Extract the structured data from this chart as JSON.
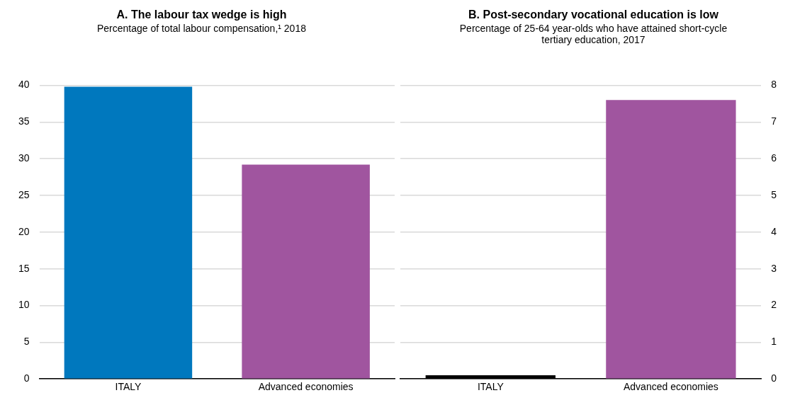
{
  "chart_data": [
    {
      "type": "bar",
      "title": "A. The labour tax wedge is high",
      "subtitle": "Percentage of total labour compensation,¹ 2018",
      "categories": [
        "ITALY",
        "Advanced economies"
      ],
      "series": [
        {
          "values": [
            39.8,
            29.2
          ],
          "colors": [
            "#0078be",
            "#a0559f"
          ]
        }
      ],
      "ylim": [
        0,
        40
      ],
      "yticks": [
        0,
        5,
        10,
        15,
        20,
        25,
        30,
        35,
        40
      ],
      "grid": "y",
      "legend": false
    },
    {
      "type": "bar",
      "title": "B. Post-secondary vocational education is low",
      "subtitle": "Percentage of 25-64 year-olds who have attained short-cycle tertiary education, 2017",
      "categories": [
        "ITALY",
        "Advanced economies"
      ],
      "series": [
        {
          "values": [
            0.1,
            7.6
          ],
          "colors": [
            "#000000",
            "#a0559f"
          ],
          "axis": "y2"
        }
      ],
      "y2lim": [
        0,
        8
      ],
      "y2ticks": [
        0,
        1,
        2,
        3,
        4,
        5,
        6,
        7,
        8
      ],
      "grid": "y",
      "legend": false
    }
  ]
}
